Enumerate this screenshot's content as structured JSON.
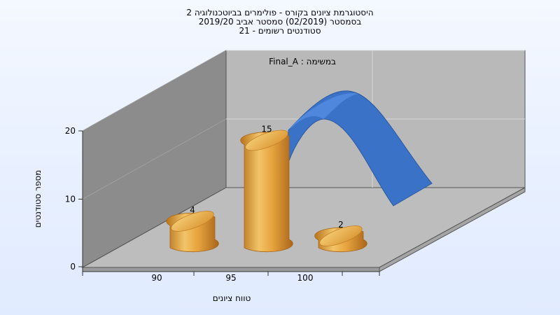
{
  "chart_data": {
    "type": "bar",
    "title_lines": [
      "היסטוגרמת ציונים בקורס - פולימרים בביוטכנולוגיה 2",
      "בסמסטר (02/2019) סמסטר אביב 2019/20",
      "סטודנטים רשומים - 21"
    ],
    "annotation": "Final_A : במשימה",
    "xlabel": "טווח ציונים",
    "ylabel": "מספר סטודנטים",
    "ylim": [
      0,
      20
    ],
    "y_ticks": [
      "0",
      "10",
      "20"
    ],
    "x_ticks": [
      "90",
      "95",
      "100"
    ],
    "categories": [
      "90",
      "95",
      "100"
    ],
    "values": [
      4,
      15,
      2
    ],
    "data_labels": [
      "4",
      "15",
      "2"
    ],
    "grid": true,
    "colors": {
      "bar": "#e8a43e",
      "bar_dark": "#b8741c",
      "curve": "#3a72c8",
      "wall": "#b7b7b7",
      "side": "#8a8a8a"
    }
  }
}
